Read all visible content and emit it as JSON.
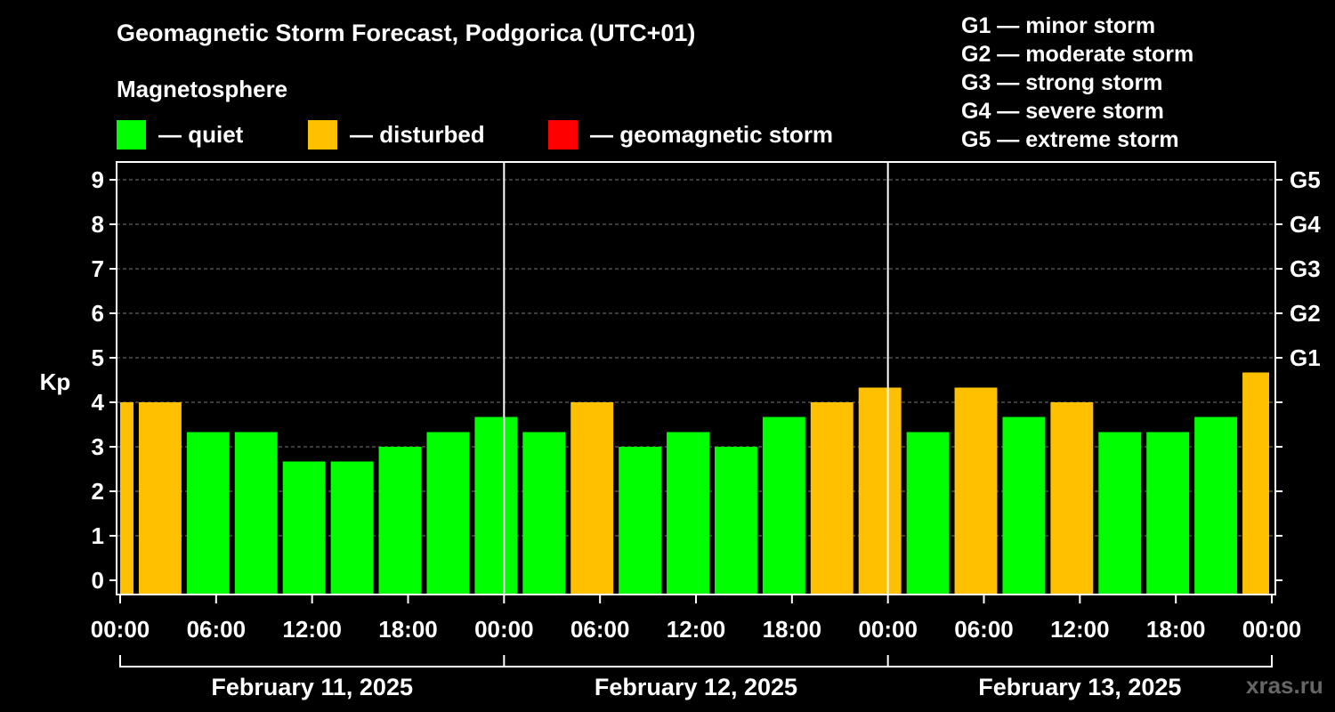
{
  "title": "Geomagnetic Storm Forecast, Podgorica (UTC+01)",
  "magnetosphere_label": "Magnetosphere",
  "legend": [
    {
      "label": "— quiet",
      "color": "#00ff00"
    },
    {
      "label": "— disturbed",
      "color": "#ffc000"
    },
    {
      "label": "— geomagnetic storm",
      "color": "#ff0000"
    }
  ],
  "storm_legend": [
    "G1 — minor storm",
    "G2 — moderate storm",
    "G3 — strong storm",
    "G4 — severe storm",
    "G5 — extreme storm"
  ],
  "watermark": "xras.ru",
  "chart_data": {
    "type": "bar",
    "ylabel": "Kp",
    "ylim": [
      0,
      9
    ],
    "yticks": [
      "0",
      "1",
      "2",
      "3",
      "4",
      "5",
      "6",
      "7",
      "8",
      "9"
    ],
    "right_axis": [
      {
        "kp": 5,
        "label": "G1"
      },
      {
        "kp": 6,
        "label": "G2"
      },
      {
        "kp": 7,
        "label": "G3"
      },
      {
        "kp": 8,
        "label": "G4"
      },
      {
        "kp": 9,
        "label": "G5"
      }
    ],
    "grid": "horizontal dashed",
    "xticks": [
      "00:00",
      "06:00",
      "12:00",
      "18:00",
      "00:00",
      "06:00",
      "12:00",
      "18:00",
      "00:00",
      "06:00",
      "12:00",
      "18:00",
      "00:00"
    ],
    "days": [
      "February 11, 2025",
      "February 12, 2025",
      "February 13, 2025"
    ],
    "colors": {
      "quiet": "#00ff00",
      "disturbed": "#ffc000",
      "storm": "#ff0000"
    },
    "bars": [
      {
        "start_hour": 0,
        "end_hour": 1,
        "kp": 4.0,
        "level": "disturbed"
      },
      {
        "start_hour": 1,
        "end_hour": 4,
        "kp": 4.0,
        "level": "disturbed"
      },
      {
        "start_hour": 4,
        "end_hour": 7,
        "kp": 3.33,
        "level": "quiet"
      },
      {
        "start_hour": 7,
        "end_hour": 10,
        "kp": 3.33,
        "level": "quiet"
      },
      {
        "start_hour": 10,
        "end_hour": 13,
        "kp": 2.67,
        "level": "quiet"
      },
      {
        "start_hour": 13,
        "end_hour": 16,
        "kp": 2.67,
        "level": "quiet"
      },
      {
        "start_hour": 16,
        "end_hour": 19,
        "kp": 3.0,
        "level": "quiet"
      },
      {
        "start_hour": 19,
        "end_hour": 22,
        "kp": 3.33,
        "level": "quiet"
      },
      {
        "start_hour": 22,
        "end_hour": 25,
        "kp": 3.67,
        "level": "quiet"
      },
      {
        "start_hour": 25,
        "end_hour": 28,
        "kp": 3.33,
        "level": "quiet"
      },
      {
        "start_hour": 28,
        "end_hour": 31,
        "kp": 4.0,
        "level": "disturbed"
      },
      {
        "start_hour": 31,
        "end_hour": 34,
        "kp": 3.0,
        "level": "quiet"
      },
      {
        "start_hour": 34,
        "end_hour": 37,
        "kp": 3.33,
        "level": "quiet"
      },
      {
        "start_hour": 37,
        "end_hour": 40,
        "kp": 3.0,
        "level": "quiet"
      },
      {
        "start_hour": 40,
        "end_hour": 43,
        "kp": 3.67,
        "level": "quiet"
      },
      {
        "start_hour": 43,
        "end_hour": 46,
        "kp": 4.0,
        "level": "disturbed"
      },
      {
        "start_hour": 46,
        "end_hour": 49,
        "kp": 4.33,
        "level": "disturbed"
      },
      {
        "start_hour": 49,
        "end_hour": 52,
        "kp": 3.33,
        "level": "quiet"
      },
      {
        "start_hour": 52,
        "end_hour": 55,
        "kp": 4.33,
        "level": "disturbed"
      },
      {
        "start_hour": 55,
        "end_hour": 58,
        "kp": 3.67,
        "level": "quiet"
      },
      {
        "start_hour": 58,
        "end_hour": 61,
        "kp": 4.0,
        "level": "disturbed"
      },
      {
        "start_hour": 61,
        "end_hour": 64,
        "kp": 3.33,
        "level": "quiet"
      },
      {
        "start_hour": 64,
        "end_hour": 67,
        "kp": 3.33,
        "level": "quiet"
      },
      {
        "start_hour": 67,
        "end_hour": 70,
        "kp": 3.67,
        "level": "quiet"
      },
      {
        "start_hour": 70,
        "end_hour": 72,
        "kp": 4.67,
        "level": "disturbed"
      }
    ]
  }
}
